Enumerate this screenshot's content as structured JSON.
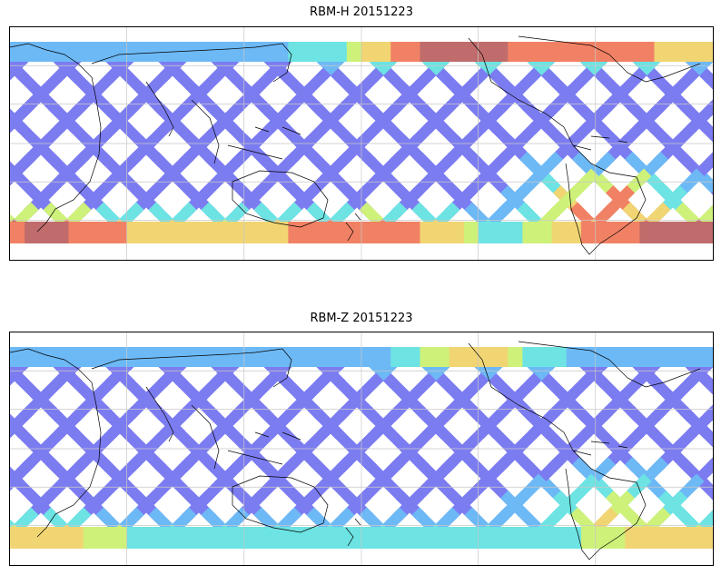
{
  "panels": [
    {
      "id": "top",
      "title": "RBM-H 20151223",
      "north_high_band": [
        0.0,
        0.0,
        0.1,
        0.2,
        0.2,
        0.2,
        0.2,
        0.2,
        0.1,
        0.2,
        0.3,
        0.4,
        0.6,
        0.8,
        1.0,
        1.0,
        1.0,
        0.9,
        0.9,
        0.9,
        0.8,
        0.8,
        0.7,
        0.6,
        0.6
      ],
      "south_high_band": [
        0.9,
        1.0,
        0.9,
        0.8,
        0.7,
        0.7,
        0.6,
        0.6,
        0.6,
        0.7,
        0.8,
        0.8,
        0.9,
        0.8,
        0.7,
        0.6,
        0.4,
        0.4,
        0.5,
        0.7,
        0.8,
        0.9,
        1.0,
        1.0,
        1.0
      ],
      "saa_intensity": 0.85
    },
    {
      "id": "bottom",
      "title": "RBM-Z 20151223",
      "north_high_band": [
        0.0,
        0.0,
        0.0,
        0.0,
        0.0,
        0.0,
        0.0,
        0.0,
        0.0,
        0.0,
        0.0,
        0.0,
        0.1,
        0.3,
        0.5,
        0.6,
        0.7,
        0.5,
        0.3,
        0.2,
        0.1,
        0.1,
        0.0,
        0.0,
        0.0
      ],
      "south_high_band": [
        0.6,
        0.7,
        0.6,
        0.5,
        0.4,
        0.4,
        0.3,
        0.3,
        0.3,
        0.3,
        0.3,
        0.3,
        0.3,
        0.3,
        0.3,
        0.3,
        0.3,
        0.3,
        0.3,
        0.4,
        0.5,
        0.6,
        0.7,
        0.6,
        0.6
      ],
      "saa_intensity": 0.6
    }
  ],
  "colors": {
    "low": "#6a6af0",
    "mid_low": "#5ab0f5",
    "mid": "#5ae0e0",
    "mid_high": "#c8f068",
    "high": "#f0d060",
    "very_high": "#f07050",
    "max": "#b85858",
    "coast": "#000000",
    "grid": "#c8c8c8"
  }
}
